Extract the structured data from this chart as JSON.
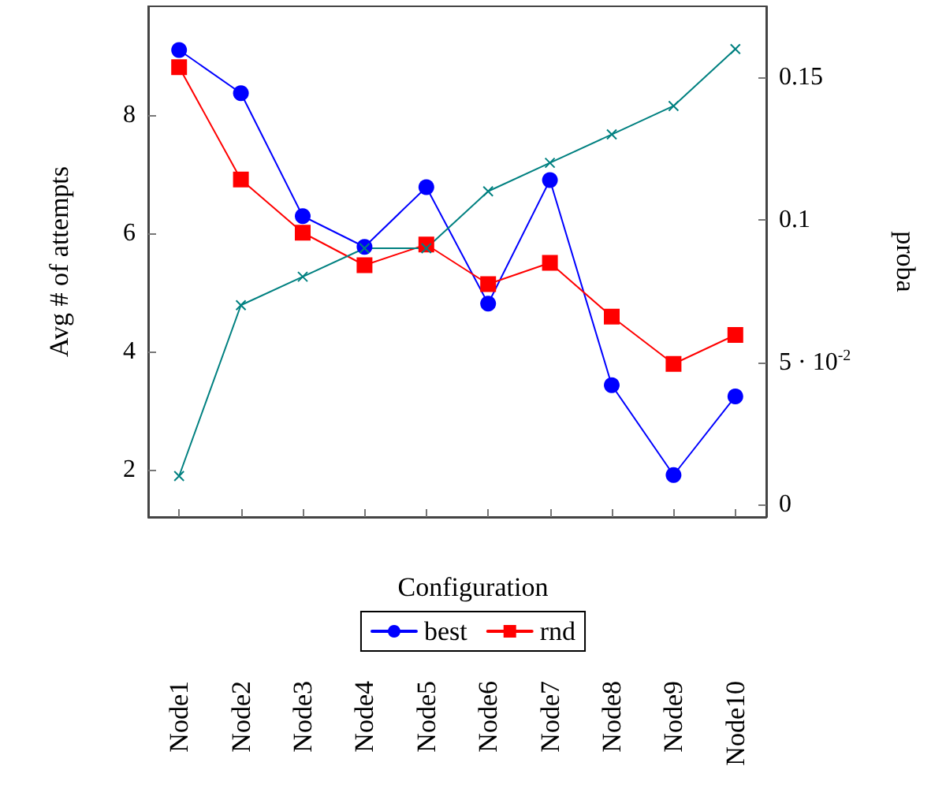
{
  "chart_data": {
    "type": "line",
    "xlabel": "Configuration",
    "ylabel": "Avg # of attempts",
    "y2label": "proba",
    "categories": [
      "Node1",
      "Node2",
      "Node3",
      "Node4",
      "Node5",
      "Node6",
      "Node7",
      "Node8",
      "Node9",
      "Node10"
    ],
    "series": [
      {
        "name": "best",
        "color": "#0000ff",
        "marker": "circle",
        "values": [
          9.1,
          8.37,
          6.29,
          5.77,
          6.78,
          4.81,
          6.9,
          3.43,
          1.91,
          3.24
        ]
      },
      {
        "name": "rnd",
        "color": "#ff0000",
        "marker": "square",
        "values": [
          8.81,
          6.91,
          6.01,
          5.46,
          5.81,
          5.14,
          5.5,
          4.59,
          3.79,
          4.28
        ]
      },
      {
        "color": "#008080",
        "marker": "cross",
        "axis": "y2",
        "values": [
          0.01,
          0.07,
          0.08,
          0.09,
          0.09,
          0.11,
          0.12,
          0.13,
          0.14,
          0.16
        ]
      }
    ],
    "ylim": [
      1.2,
      9.84
    ],
    "yticks": [
      2,
      4,
      6,
      8
    ],
    "y2lim": [
      -0.0044,
      0.175
    ],
    "y2ticks": [
      0,
      {
        "value": 0.05,
        "label": "5 · 10$^{-2}$"
      },
      0.1,
      0.15
    ],
    "grid": false,
    "legend": "bottom",
    "line_style": "solid"
  }
}
